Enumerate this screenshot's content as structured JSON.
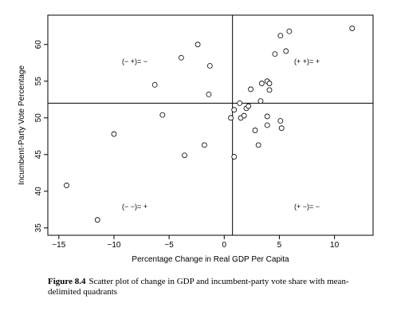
{
  "chart_data": {
    "type": "scatter",
    "xlabel": "Percentage Change in Real GDP Per Capita",
    "ylabel": "Incumbent-Party Vote Percentage",
    "xlim": [
      -16,
      13.5
    ],
    "ylim": [
      34,
      64
    ],
    "xticks": [
      -15,
      -10,
      -5,
      0,
      5,
      10
    ],
    "xtick_labels": [
      "−15",
      "−10",
      "−5",
      "0",
      "5",
      "10"
    ],
    "yticks": [
      35,
      40,
      45,
      50,
      55,
      60
    ],
    "ytick_labels": [
      "35",
      "40",
      "45",
      "50",
      "55",
      "60"
    ],
    "mean_x": 0.75,
    "mean_y": 52.0,
    "quadrant_labels": {
      "top_left": "(− +)= −",
      "top_right": "(+ +)= +",
      "bottom_left": "(− −)= +",
      "bottom_right": "(+ −)= −"
    },
    "points": [
      {
        "x": -14.3,
        "y": 40.8
      },
      {
        "x": -11.5,
        "y": 36.1
      },
      {
        "x": -10.0,
        "y": 47.8
      },
      {
        "x": -6.3,
        "y": 54.5
      },
      {
        "x": -5.6,
        "y": 50.4
      },
      {
        "x": -3.9,
        "y": 58.2
      },
      {
        "x": -3.6,
        "y": 44.9
      },
      {
        "x": -2.4,
        "y": 60.0
      },
      {
        "x": -1.8,
        "y": 46.3
      },
      {
        "x": -1.3,
        "y": 57.1
      },
      {
        "x": -1.4,
        "y": 53.2
      },
      {
        "x": 0.6,
        "y": 50.0
      },
      {
        "x": 0.9,
        "y": 51.1
      },
      {
        "x": 0.9,
        "y": 44.7
      },
      {
        "x": 1.4,
        "y": 52.0
      },
      {
        "x": 1.5,
        "y": 50.0
      },
      {
        "x": 1.8,
        "y": 50.3
      },
      {
        "x": 2.0,
        "y": 51.3
      },
      {
        "x": 2.2,
        "y": 51.6
      },
      {
        "x": 2.4,
        "y": 53.9
      },
      {
        "x": 2.8,
        "y": 48.3
      },
      {
        "x": 3.1,
        "y": 46.3
      },
      {
        "x": 3.3,
        "y": 52.3
      },
      {
        "x": 3.4,
        "y": 54.7
      },
      {
        "x": 3.9,
        "y": 55.0
      },
      {
        "x": 4.1,
        "y": 54.7
      },
      {
        "x": 3.9,
        "y": 50.2
      },
      {
        "x": 3.9,
        "y": 49.0
      },
      {
        "x": 4.1,
        "y": 53.8
      },
      {
        "x": 4.6,
        "y": 58.7
      },
      {
        "x": 5.1,
        "y": 61.2
      },
      {
        "x": 5.1,
        "y": 49.6
      },
      {
        "x": 5.2,
        "y": 48.6
      },
      {
        "x": 5.6,
        "y": 59.1
      },
      {
        "x": 5.9,
        "y": 61.8
      },
      {
        "x": 11.6,
        "y": 62.2
      }
    ]
  },
  "caption": {
    "label": "Figure 8.4",
    "text": "Scatter plot of change in GDP and incumbent-party vote share with mean-delimited quadrants"
  }
}
